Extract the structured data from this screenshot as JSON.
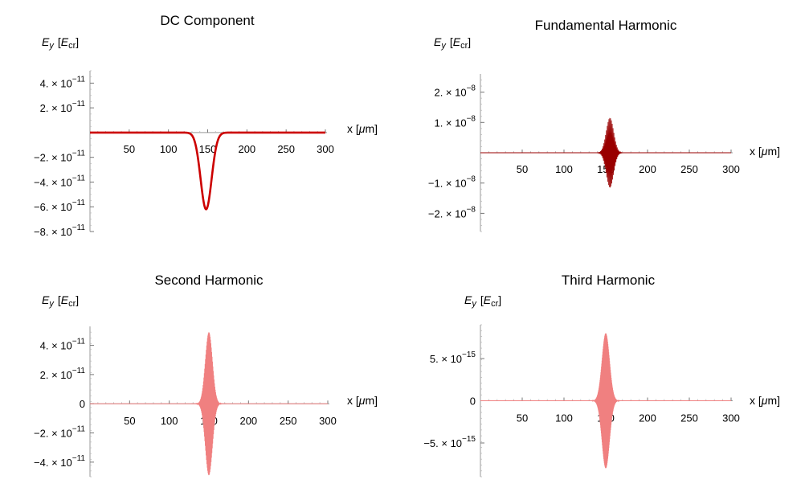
{
  "chart_data": [
    {
      "type": "line",
      "title": "DC Component",
      "ylabel_main": "E",
      "ylabel_sub": "y",
      "yunit_open": "[",
      "yunit_main": "E",
      "yunit_sub": "cr",
      "yunit_close": "]",
      "xlabel_prefix": "x [",
      "xlabel_mu": "μ",
      "xlabel_suffix": "m]",
      "xlim": [
        0,
        300
      ],
      "ylim": [
        -8e-11,
        5e-11
      ],
      "x_ticks": [
        50,
        100,
        150,
        200,
        250,
        300
      ],
      "x_tick_labels": [
        "50",
        "100",
        "150",
        "200",
        "250",
        "300"
      ],
      "y_ticks": [
        {
          "value": 4e-11,
          "mant": "4.",
          "exp": "−11"
        },
        {
          "value": 2e-11,
          "mant": "2.",
          "exp": "−11"
        },
        {
          "value": -2e-11,
          "mant": "−2.",
          "exp": "−11"
        },
        {
          "value": -4e-11,
          "mant": "−4.",
          "exp": "−11"
        },
        {
          "value": -6e-11,
          "mant": "−6.",
          "exp": "−11"
        },
        {
          "value": -8e-11,
          "mant": "−8.",
          "exp": "−11"
        }
      ],
      "series": [
        {
          "kind": "gaussian",
          "center": 148,
          "sigma": 7,
          "amplitude": -6.2e-11,
          "color": "#cc0000"
        }
      ]
    },
    {
      "type": "line",
      "title": "Fundamental Harmonic",
      "ylabel_main": "E",
      "ylabel_sub": "y",
      "yunit_open": "[",
      "yunit_main": "E",
      "yunit_sub": "cr",
      "yunit_close": "]",
      "xlabel_prefix": "x [",
      "xlabel_mu": "μ",
      "xlabel_suffix": "m]",
      "xlim": [
        0,
        300
      ],
      "ylim": [
        -2.6e-08,
        2.6e-08
      ],
      "x_ticks": [
        50,
        100,
        150,
        200,
        250,
        300
      ],
      "x_tick_labels": [
        "50",
        "100",
        "150",
        "200",
        "250",
        "300"
      ],
      "y_ticks": [
        {
          "value": 2e-08,
          "mant": "2.",
          "exp": "−8"
        },
        {
          "value": 1e-08,
          "mant": "1.",
          "exp": "−8"
        },
        {
          "value": -1e-08,
          "mant": "−1.",
          "exp": "−8"
        },
        {
          "value": -2e-08,
          "mant": "−2.",
          "exp": "−8"
        }
      ],
      "series": [
        {
          "kind": "oscillation",
          "center": 155,
          "sigma": 4.5,
          "amplitude": 1.15e-08,
          "period": 1.0,
          "color": "#990000"
        }
      ]
    },
    {
      "type": "line",
      "title": "Second Harmonic",
      "ylabel_main": "E",
      "ylabel_sub": "y",
      "yunit_open": "[",
      "yunit_main": "E",
      "yunit_sub": "cr",
      "yunit_close": "]",
      "xlabel_prefix": "x [",
      "xlabel_mu": "μ",
      "xlabel_suffix": "m]",
      "xlim": [
        0,
        300
      ],
      "ylim": [
        -5e-11,
        5.3e-11
      ],
      "x_ticks": [
        50,
        100,
        150,
        200,
        250,
        300
      ],
      "x_tick_labels": [
        "50",
        "100",
        "150",
        "200",
        "250",
        "300"
      ],
      "y_ticks": [
        {
          "value": 4e-11,
          "mant": "4.",
          "exp": "−11"
        },
        {
          "value": 2e-11,
          "mant": "2.",
          "exp": "−11"
        },
        {
          "value": 0,
          "plain": "0"
        },
        {
          "value": -2e-11,
          "mant": "−2.",
          "exp": "−11"
        },
        {
          "value": -4e-11,
          "mant": "−4.",
          "exp": "−11"
        }
      ],
      "series": [
        {
          "kind": "oscillation",
          "center": 150,
          "sigma": 4.5,
          "amplitude": 4.9e-11,
          "period": 0.5,
          "color": "#f08080"
        }
      ]
    },
    {
      "type": "line",
      "title": "Third Harmonic",
      "ylabel_main": "E",
      "ylabel_sub": "y",
      "yunit_open": "[",
      "yunit_main": "E",
      "yunit_sub": "cr",
      "yunit_close": "]",
      "xlabel_prefix": "x [",
      "xlabel_mu": "μ",
      "xlabel_suffix": "m]",
      "xlim": [
        0,
        300
      ],
      "ylim": [
        -9e-15,
        9e-15
      ],
      "x_ticks": [
        50,
        100,
        150,
        200,
        250,
        300
      ],
      "x_tick_labels": [
        "50",
        "100",
        "150",
        "200",
        "250",
        "300"
      ],
      "y_ticks": [
        {
          "value": 5e-15,
          "mant": "5.",
          "exp": "−15"
        },
        {
          "value": 0,
          "plain": "0"
        },
        {
          "value": -5e-15,
          "mant": "−5.",
          "exp": "−15"
        }
      ],
      "series": [
        {
          "kind": "oscillation",
          "center": 150,
          "sigma": 4.5,
          "amplitude": 8e-15,
          "period": 0.33,
          "color": "#f08080"
        }
      ]
    }
  ]
}
